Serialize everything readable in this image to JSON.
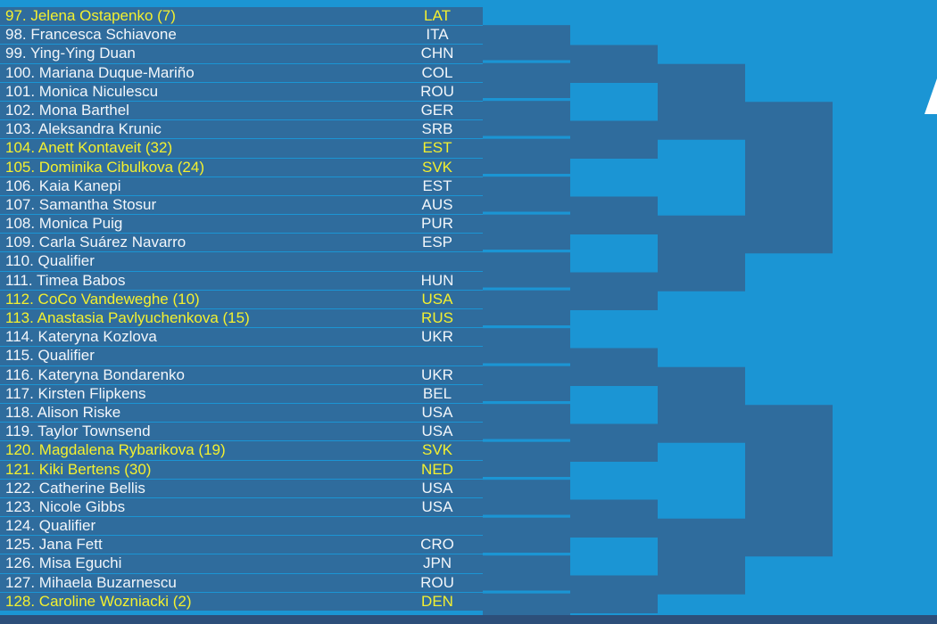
{
  "players": [
    {
      "num": "97.",
      "name": "Jelena Ostapenko (7)",
      "country": "LAT",
      "seeded": true
    },
    {
      "num": "98.",
      "name": "Francesca Schiavone",
      "country": "ITA",
      "seeded": false
    },
    {
      "num": "99.",
      "name": "Ying-Ying Duan",
      "country": "CHN",
      "seeded": false
    },
    {
      "num": "100.",
      "name": "Mariana Duque-Mariño",
      "country": "COL",
      "seeded": false
    },
    {
      "num": "101.",
      "name": "Monica Niculescu",
      "country": "ROU",
      "seeded": false
    },
    {
      "num": "102.",
      "name": "Mona Barthel",
      "country": "GER",
      "seeded": false
    },
    {
      "num": "103.",
      "name": "Aleksandra Krunic",
      "country": "SRB",
      "seeded": false
    },
    {
      "num": "104.",
      "name": "Anett Kontaveit (32)",
      "country": "EST",
      "seeded": true
    },
    {
      "num": "105.",
      "name": "Dominika Cibulkova (24)",
      "country": "SVK",
      "seeded": true
    },
    {
      "num": "106.",
      "name": "Kaia Kanepi",
      "country": "EST",
      "seeded": false
    },
    {
      "num": "107.",
      "name": "Samantha Stosur",
      "country": "AUS",
      "seeded": false
    },
    {
      "num": "108.",
      "name": "Monica Puig",
      "country": "PUR",
      "seeded": false
    },
    {
      "num": "109.",
      "name": "Carla Suárez Navarro",
      "country": "ESP",
      "seeded": false
    },
    {
      "num": "110.",
      "name": "Qualifier",
      "country": "",
      "seeded": false
    },
    {
      "num": "111.",
      "name": "Timea Babos",
      "country": "HUN",
      "seeded": false
    },
    {
      "num": "112.",
      "name": "CoCo Vandeweghe (10)",
      "country": "USA",
      "seeded": true
    },
    {
      "num": "113.",
      "name": "Anastasia Pavlyuchenkova (15)",
      "country": "RUS",
      "seeded": true
    },
    {
      "num": "114.",
      "name": "Kateryna Kozlova",
      "country": "UKR",
      "seeded": false
    },
    {
      "num": "115.",
      "name": "Qualifier",
      "country": "",
      "seeded": false
    },
    {
      "num": "116.",
      "name": "Kateryna Bondarenko",
      "country": "UKR",
      "seeded": false
    },
    {
      "num": "117.",
      "name": "Kirsten Flipkens",
      "country": "BEL",
      "seeded": false
    },
    {
      "num": "118.",
      "name": "Alison Riske",
      "country": "USA",
      "seeded": false
    },
    {
      "num": "119.",
      "name": "Taylor Townsend",
      "country": "USA",
      "seeded": false
    },
    {
      "num": "120.",
      "name": "Magdalena Rybarikova (19)",
      "country": "SVK",
      "seeded": true
    },
    {
      "num": "121.",
      "name": "Kiki Bertens (30)",
      "country": "NED",
      "seeded": true
    },
    {
      "num": "122.",
      "name": "Catherine Bellis",
      "country": "USA",
      "seeded": false
    },
    {
      "num": "123.",
      "name": "Nicole Gibbs",
      "country": "USA",
      "seeded": false
    },
    {
      "num": "124.",
      "name": "Qualifier",
      "country": "",
      "seeded": false
    },
    {
      "num": "125.",
      "name": "Jana Fett",
      "country": "CRO",
      "seeded": false
    },
    {
      "num": "126.",
      "name": "Misa Eguchi",
      "country": "JPN",
      "seeded": false
    },
    {
      "num": "127.",
      "name": "Mihaela Buzarnescu",
      "country": "ROU",
      "seeded": false
    },
    {
      "num": "128.",
      "name": "Caroline Wozniacki (2)",
      "country": "DEN",
      "seeded": true
    }
  ],
  "colors": {
    "background": "#1b95d4",
    "row": "#2f6c9d",
    "bracket_box": "#2f6c9d",
    "text": "#f2f6fa",
    "seed_text": "#f4f02f"
  }
}
